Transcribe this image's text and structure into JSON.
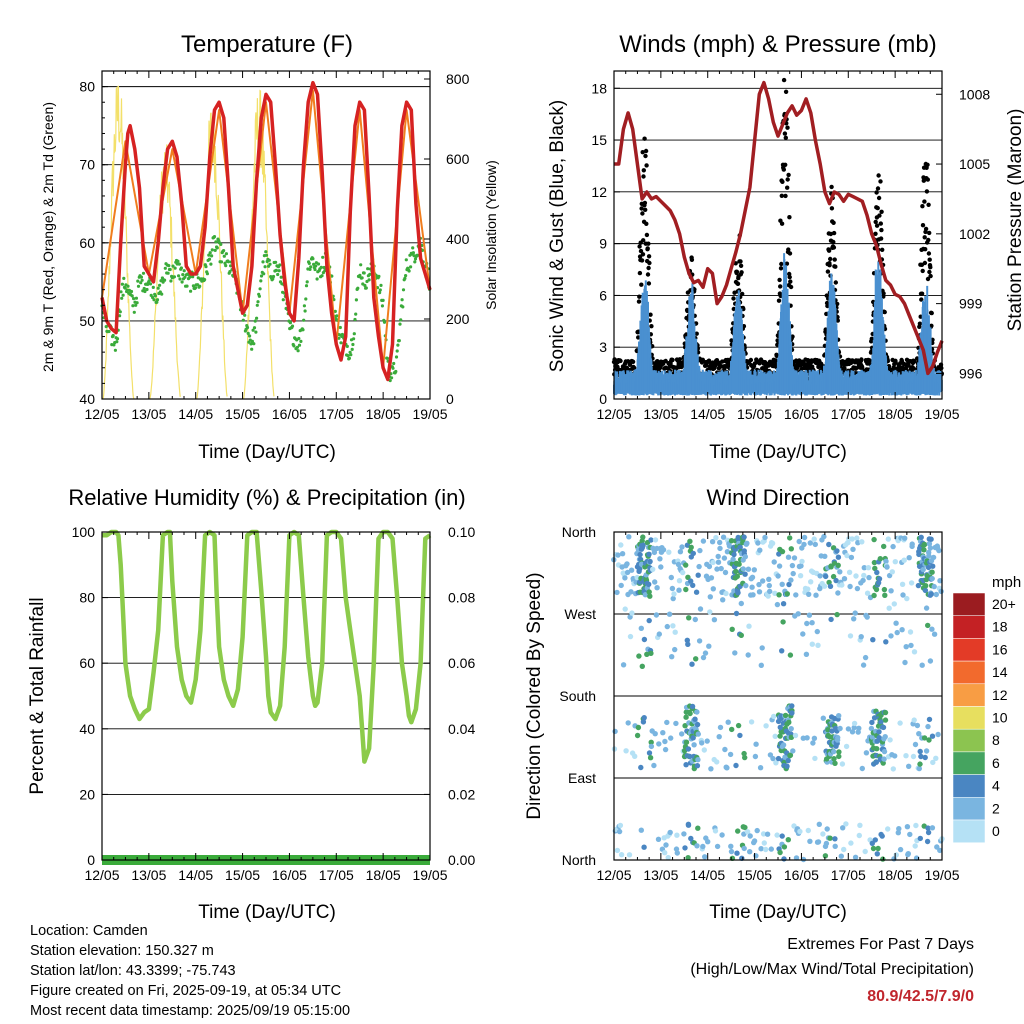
{
  "chart_data": [
    {
      "type": "line",
      "title": "Temperature (F)",
      "xlabel": "Time (Day/UTC)",
      "ylabel": "2m & 9m T (Red, Orange) & 2m Td (Green)",
      "y2label": "Solar Insolation (Yellow)",
      "x_ticks": [
        "12/05",
        "13/05",
        "14/05",
        "15/05",
        "16/05",
        "17/05",
        "18/05",
        "19/05"
      ],
      "ylim": [
        40,
        82
      ],
      "y_ticks": [
        40,
        50,
        60,
        70,
        80
      ],
      "y2lim": [
        0,
        820
      ],
      "y2_ticks": [
        0,
        200,
        400,
        600,
        800
      ],
      "series": [
        {
          "name": "2m T",
          "color": "#d62222",
          "x": [
            0,
            0.1,
            0.2,
            0.3,
            0.4,
            0.5,
            0.55,
            0.6,
            0.7,
            0.8,
            0.9,
            1.0,
            1.1,
            1.2,
            1.3,
            1.4,
            1.5,
            1.6,
            1.7,
            1.8,
            1.9,
            2.0,
            2.1,
            2.2,
            2.3,
            2.4,
            2.5,
            2.6,
            2.7,
            2.8,
            2.9,
            3.0,
            3.1,
            3.2,
            3.3,
            3.4,
            3.5,
            3.6,
            3.7,
            3.8,
            3.9,
            4.0,
            4.1,
            4.2,
            4.3,
            4.4,
            4.5,
            4.6,
            4.7,
            4.8,
            4.9,
            5.0,
            5.1,
            5.2,
            5.3,
            5.4,
            5.5,
            5.6,
            5.7,
            5.8,
            5.9,
            6.0,
            6.1,
            6.2,
            6.3,
            6.4,
            6.5,
            6.6,
            6.7,
            6.8,
            6.9,
            7.0
          ],
          "values": [
            53,
            50,
            49,
            48.5,
            60,
            70,
            74,
            75,
            72,
            67,
            57,
            56,
            55,
            60,
            67,
            72,
            73,
            71,
            65,
            57,
            56,
            56,
            57,
            62,
            71,
            77,
            78,
            76,
            67,
            57,
            54,
            51,
            52,
            57,
            68,
            76,
            79,
            78,
            70,
            61,
            55,
            51,
            50,
            58,
            70,
            78,
            80.5,
            79,
            69,
            57,
            51,
            47,
            45,
            48,
            64,
            75,
            78,
            77,
            66,
            53,
            48,
            44,
            42.5,
            47,
            64,
            75,
            78,
            77,
            65,
            58,
            56,
            54
          ]
        },
        {
          "name": "9m T",
          "color": "#f07d1e",
          "x": [
            0,
            0.5,
            1.0,
            1.5,
            2.0,
            2.5,
            3.0,
            3.5,
            4.0,
            4.5,
            5.0,
            5.5,
            6.0,
            6.5,
            7.0
          ],
          "values": [
            53,
            73,
            56,
            72,
            56,
            77,
            51,
            78,
            51,
            79.5,
            47,
            77,
            44,
            77,
            54
          ]
        },
        {
          "name": "2m Td",
          "color": "#3aab3a",
          "x": [
            0,
            0.1,
            0.2,
            0.3,
            0.4,
            0.5,
            0.6,
            0.7,
            0.8,
            0.9,
            1.0,
            1.1,
            1.2,
            1.3,
            1.4,
            1.5,
            1.6,
            1.7,
            1.8,
            1.9,
            2.0,
            2.1,
            2.2,
            2.3,
            2.4,
            2.5,
            2.6,
            2.7,
            2.8,
            2.9,
            3.0,
            3.1,
            3.2,
            3.3,
            3.4,
            3.5,
            3.6,
            3.7,
            3.8,
            3.9,
            4.0,
            4.1,
            4.2,
            4.3,
            4.4,
            4.5,
            4.6,
            4.7,
            4.8,
            4.9,
            5.0,
            5.1,
            5.2,
            5.3,
            5.4,
            5.5,
            5.6,
            5.7,
            5.8,
            5.9,
            6.0,
            6.1,
            6.2,
            6.3,
            6.4,
            6.5,
            6.6,
            6.7,
            6.8,
            6.9,
            7.0
          ],
          "values": [
            52,
            49,
            48,
            47,
            53,
            55,
            53,
            52,
            55,
            55,
            55,
            54,
            53,
            55,
            57,
            56,
            57,
            56,
            55,
            55,
            55,
            55,
            56,
            58,
            60,
            59,
            58,
            57,
            56,
            54,
            51,
            49,
            47,
            50,
            56,
            58,
            56,
            57,
            56,
            53,
            49,
            48,
            47,
            50,
            57,
            58,
            56,
            57,
            58,
            55,
            50,
            48,
            47,
            46,
            50,
            57,
            55,
            56,
            57,
            55,
            52,
            44,
            43,
            45,
            52,
            57,
            58,
            59,
            60,
            57,
            55
          ]
        },
        {
          "name": "Solar Insolation",
          "color": "#f3e06a",
          "axis": "y2",
          "days": 7,
          "peaks": [
            820,
            650,
            760,
            790,
            630,
            600,
            330
          ]
        }
      ]
    },
    {
      "type": "scatter",
      "title": "Winds (mph) & Pressure (mb)",
      "xlabel": "Time (Day/UTC)",
      "ylabel": "Sonic Wind & Gust (Blue, Black)",
      "y2label": "Station Pressure (Maroon)",
      "x_ticks": [
        "12/05",
        "13/05",
        "14/05",
        "15/05",
        "16/05",
        "17/05",
        "18/05",
        "19/05"
      ],
      "ylim": [
        0,
        19
      ],
      "y_ticks": [
        0,
        3,
        6,
        9,
        12,
        15,
        18
      ],
      "y2lim": [
        994.9,
        1009
      ],
      "y2_ticks": [
        996,
        999,
        1002,
        1005,
        1008
      ],
      "series": [
        {
          "name": "Station Pressure",
          "color": "#a11e22",
          "axis": "y2",
          "x": [
            0,
            0.1,
            0.2,
            0.3,
            0.4,
            0.5,
            0.6,
            0.7,
            0.8,
            0.9,
            1.0,
            1.1,
            1.2,
            1.3,
            1.4,
            1.5,
            1.6,
            1.7,
            1.8,
            1.9,
            2.0,
            2.1,
            2.2,
            2.3,
            2.4,
            2.5,
            2.6,
            2.7,
            2.8,
            2.9,
            3.0,
            3.1,
            3.2,
            3.3,
            3.4,
            3.5,
            3.6,
            3.7,
            3.8,
            3.9,
            4.0,
            4.1,
            4.2,
            4.3,
            4.4,
            4.5,
            4.6,
            4.7,
            4.8,
            4.9,
            5.0,
            5.1,
            5.2,
            5.3,
            5.4,
            5.5,
            5.6,
            5.7,
            5.8,
            5.9,
            6.0,
            6.1,
            6.2,
            6.3,
            6.4,
            6.5,
            6.6,
            6.7,
            6.8,
            6.9,
            7.0
          ],
          "values": [
            1005,
            1005,
            1006.5,
            1007.2,
            1006.5,
            1005,
            1003.5,
            1003.8,
            1003.5,
            1003.6,
            1003.4,
            1003.2,
            1003,
            1002.6,
            1002,
            1001,
            1000.3,
            999.9,
            1000,
            999.7,
            1000.5,
            1000.3,
            999,
            999.3,
            999.8,
            1000.5,
            1001.2,
            1002,
            1003,
            1004,
            1006,
            1008,
            1008.5,
            1007.8,
            1006.8,
            1006.2,
            1006.7,
            1007.2,
            1007.5,
            1007.1,
            1007.3,
            1007.8,
            1007.2,
            1006,
            1005,
            1003.8,
            1003.3,
            1003.8,
            1003.7,
            1003.4,
            1003.7,
            1003.6,
            1003.5,
            1003.4,
            1002.8,
            1002,
            1001.5,
            1000.7,
            1000,
            999.8,
            999.4,
            999.3,
            999,
            998.5,
            998,
            997.5,
            997,
            996,
            996.3,
            996.9,
            997.4
          ]
        },
        {
          "name": "Gust",
          "color": "#000000",
          "type": "scatter",
          "peaks_by_day": [
            14.5,
            6.5,
            8,
            17,
            11,
            12,
            13.5
          ]
        },
        {
          "name": "Sonic Wind",
          "color": "#4a90d0",
          "type": "scatter",
          "peaks_by_day": [
            6,
            5.5,
            5.5,
            7.3,
            6.3,
            7.8,
            6
          ]
        }
      ]
    },
    {
      "type": "line",
      "title": "Relative Humidity (%) & Precipitation (in)",
      "xlabel": "Time (Day/UTC)",
      "ylabel": "Percent & Total Rainfall",
      "x_ticks": [
        "12/05",
        "13/05",
        "14/05",
        "15/05",
        "16/05",
        "17/05",
        "18/05",
        "19/05"
      ],
      "ylim": [
        0,
        100
      ],
      "y_ticks": [
        0,
        20,
        40,
        60,
        80,
        100
      ],
      "y2lim": [
        0,
        0.1
      ],
      "y2_ticks": [
        "0.00",
        "0.02",
        "0.04",
        "0.06",
        "0.08",
        "0.10"
      ],
      "series": [
        {
          "name": "Relative Humidity",
          "color": "#8ccb4b",
          "x": [
            0,
            0.1,
            0.2,
            0.3,
            0.35,
            0.4,
            0.45,
            0.5,
            0.6,
            0.7,
            0.8,
            0.9,
            1.0,
            1.1,
            1.2,
            1.3,
            1.4,
            1.45,
            1.5,
            1.6,
            1.7,
            1.8,
            1.9,
            2.0,
            2.1,
            2.2,
            2.3,
            2.4,
            2.45,
            2.5,
            2.6,
            2.7,
            2.8,
            2.9,
            3.0,
            3.1,
            3.2,
            3.3,
            3.4,
            3.5,
            3.55,
            3.6,
            3.7,
            3.8,
            3.9,
            4.0,
            4.1,
            4.2,
            4.3,
            4.4,
            4.5,
            4.55,
            4.6,
            4.7,
            4.8,
            4.9,
            5.0,
            5.1,
            5.2,
            5.3,
            5.4,
            5.5,
            5.55,
            5.6,
            5.7,
            5.8,
            5.9,
            6.0,
            6.1,
            6.2,
            6.3,
            6.4,
            6.5,
            6.55,
            6.6,
            6.7,
            6.8,
            6.9,
            7.0
          ],
          "values": [
            99,
            99,
            100,
            100,
            99,
            90,
            75,
            60,
            50,
            46,
            43,
            45,
            46,
            57,
            70,
            99,
            100,
            100,
            85,
            65,
            55,
            50,
            48,
            55,
            70,
            99,
            100,
            99,
            80,
            65,
            55,
            50,
            47,
            52,
            68,
            99,
            100,
            100,
            82,
            62,
            50,
            45,
            43,
            47,
            65,
            99,
            100,
            99,
            80,
            62,
            50,
            47,
            48,
            60,
            99,
            100,
            100,
            98,
            80,
            70,
            60,
            50,
            40,
            30,
            34,
            60,
            98,
            100,
            100,
            98,
            80,
            60,
            50,
            44,
            42,
            46,
            60,
            98,
            99
          ]
        },
        {
          "name": "Precipitation",
          "color": "#3aab3a",
          "axis": "y2",
          "x": [
            0,
            7
          ],
          "values": [
            0,
            0
          ]
        }
      ]
    },
    {
      "type": "scatter",
      "title": "Wind Direction",
      "xlabel": "Time (Day/UTC)",
      "ylabel": "Direction (Colored By Speed)",
      "x_ticks": [
        "12/05",
        "13/05",
        "14/05",
        "15/05",
        "16/05",
        "17/05",
        "18/05",
        "19/05"
      ],
      "y_ticks": [
        "North",
        "East",
        "South",
        "West",
        "North"
      ],
      "legend": {
        "title": "mph",
        "labels": [
          "20+",
          "18",
          "16",
          "14",
          "12",
          "10",
          "8",
          "6",
          "4",
          "2",
          "0"
        ],
        "colors": [
          "#9b1c20",
          "#c42124",
          "#e33b27",
          "#f26a2d",
          "#f89d44",
          "#e7df5f",
          "#8cc450",
          "#45a460",
          "#4a86c2",
          "#7ab5e0",
          "#b5e1f5"
        ]
      }
    }
  ],
  "footer": {
    "location": "Location: Camden",
    "elevation": "Station elevation: 150.327 m",
    "latlon": "Station lat/lon: 43.3399; -75.743",
    "created": "Figure created on Fri, 2025-09-19, at 05:34 UTC",
    "recent": "Most recent data timestamp: 2025/09/19 05:15:00"
  },
  "extremes": {
    "heading": "Extremes For Past 7 Days",
    "subheading": "(High/Low/Max Wind/Total Precipitation)",
    "values": "80.9/42.5/7.9/0"
  }
}
